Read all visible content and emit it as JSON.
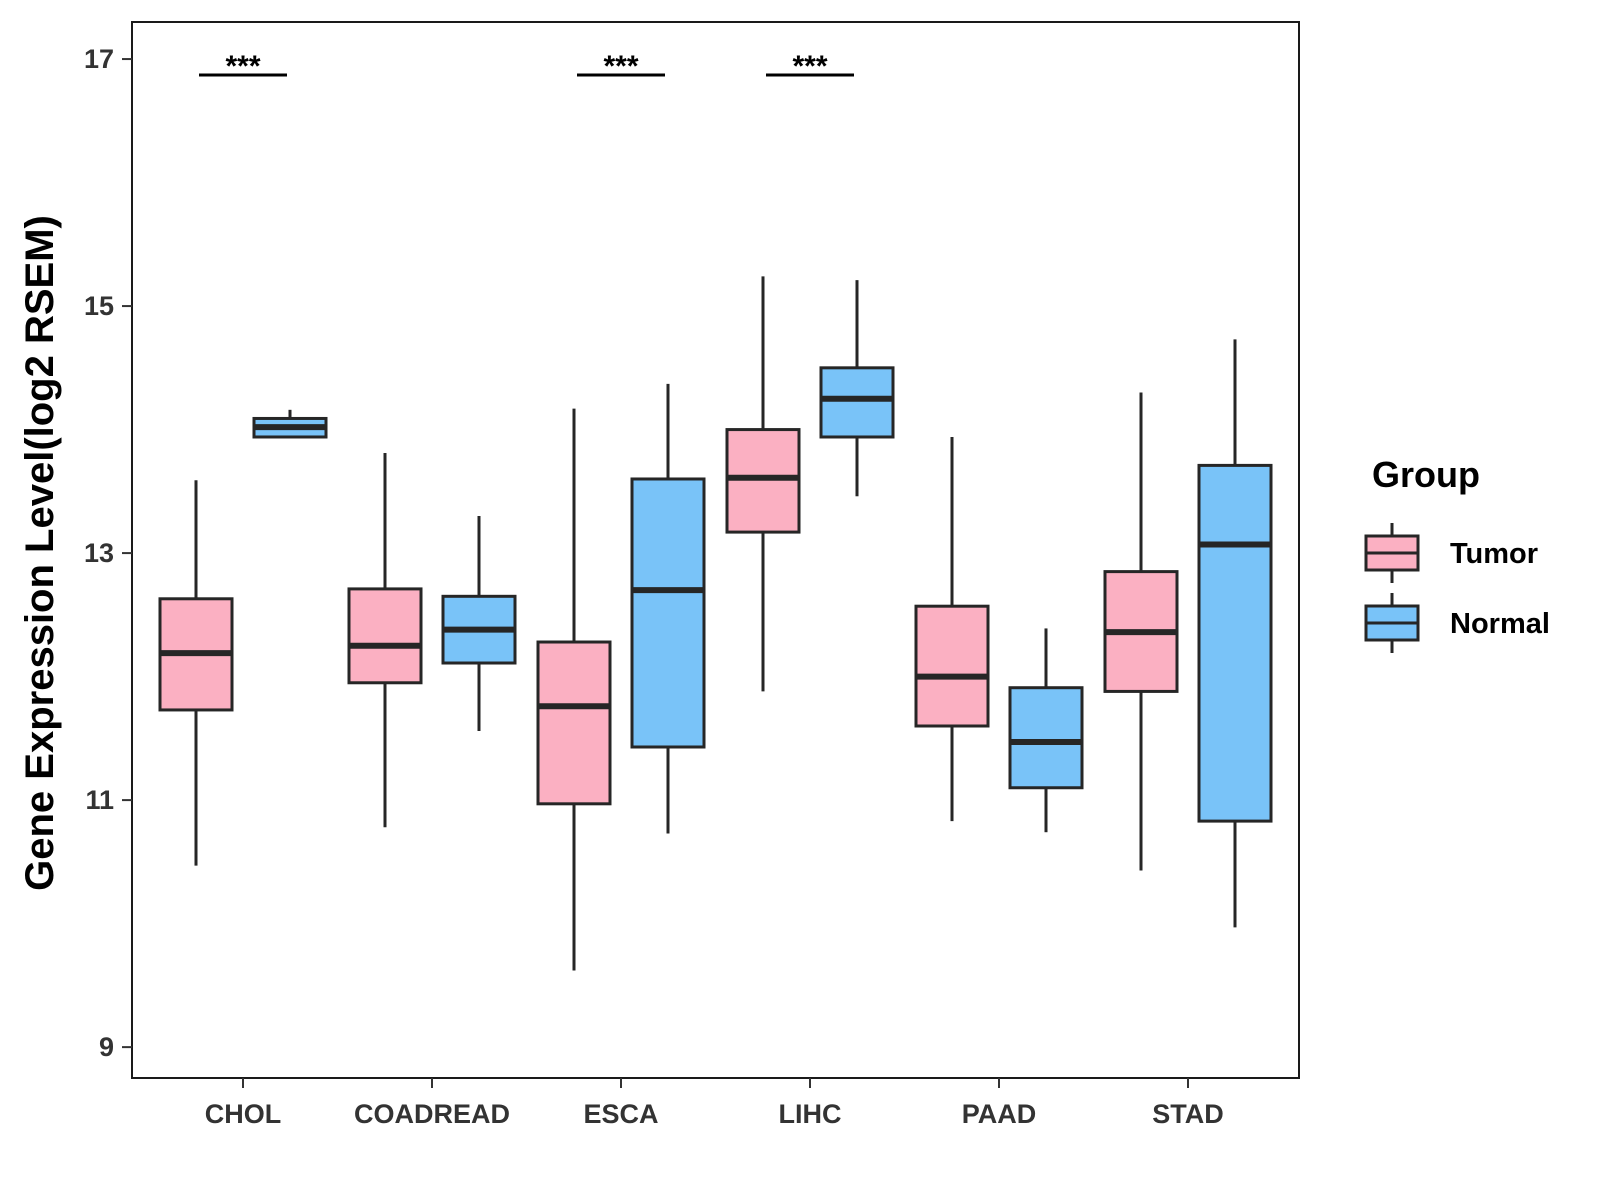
{
  "chart_data": {
    "type": "boxplot",
    "title": "",
    "xlabel": "",
    "ylabel": "Gene Expression Level(log2 RSEM)",
    "ylim": [
      8.75,
      17.3
    ],
    "yticks": [
      9,
      11,
      13,
      15,
      17
    ],
    "categories": [
      "CHOL",
      "COADREAD",
      "ESCA",
      "LIHC",
      "PAAD",
      "STAD"
    ],
    "legend": {
      "title": "Group",
      "position": "right",
      "items": [
        {
          "label": "Tumor",
          "color": "#FBB0C2"
        },
        {
          "label": "Normal",
          "color": "#79C3F8"
        }
      ]
    },
    "series": [
      {
        "name": "Tumor",
        "color": "#FBB0C2",
        "boxes": [
          {
            "category": "CHOL",
            "min": 10.47,
            "q1": 11.73,
            "median": 12.19,
            "q3": 12.63,
            "max": 13.59
          },
          {
            "category": "COADREAD",
            "min": 10.78,
            "q1": 11.95,
            "median": 12.25,
            "q3": 12.71,
            "max": 13.81
          },
          {
            "category": "ESCA",
            "min": 9.62,
            "q1": 10.97,
            "median": 11.76,
            "q3": 12.28,
            "max": 14.17
          },
          {
            "category": "LIHC",
            "min": 11.88,
            "q1": 13.17,
            "median": 13.61,
            "q3": 14.0,
            "max": 15.24
          },
          {
            "category": "PAAD",
            "min": 10.83,
            "q1": 11.6,
            "median": 12.0,
            "q3": 12.57,
            "max": 13.94
          },
          {
            "category": "STAD",
            "min": 10.43,
            "q1": 11.88,
            "median": 12.36,
            "q3": 12.85,
            "max": 14.3
          }
        ]
      },
      {
        "name": "Normal",
        "color": "#79C3F8",
        "boxes": [
          {
            "category": "CHOL",
            "min": 13.94,
            "q1": 13.94,
            "median": 14.02,
            "q3": 14.09,
            "max": 14.16
          },
          {
            "category": "COADREAD",
            "min": 11.56,
            "q1": 12.11,
            "median": 12.38,
            "q3": 12.65,
            "max": 13.3
          },
          {
            "category": "ESCA",
            "min": 10.73,
            "q1": 11.43,
            "median": 12.7,
            "q3": 13.6,
            "max": 14.37
          },
          {
            "category": "LIHC",
            "min": 13.46,
            "q1": 13.94,
            "median": 14.25,
            "q3": 14.5,
            "max": 15.21
          },
          {
            "category": "PAAD",
            "min": 10.74,
            "q1": 11.1,
            "median": 11.47,
            "q3": 11.91,
            "max": 12.39
          },
          {
            "category": "STAD",
            "min": 9.97,
            "q1": 10.83,
            "median": 13.07,
            "q3": 13.71,
            "max": 14.73
          }
        ]
      }
    ],
    "annotations": [
      {
        "category": "CHOL",
        "text": "***"
      },
      {
        "category": "ESCA",
        "text": "***"
      },
      {
        "category": "LIHC",
        "text": "***"
      }
    ]
  }
}
